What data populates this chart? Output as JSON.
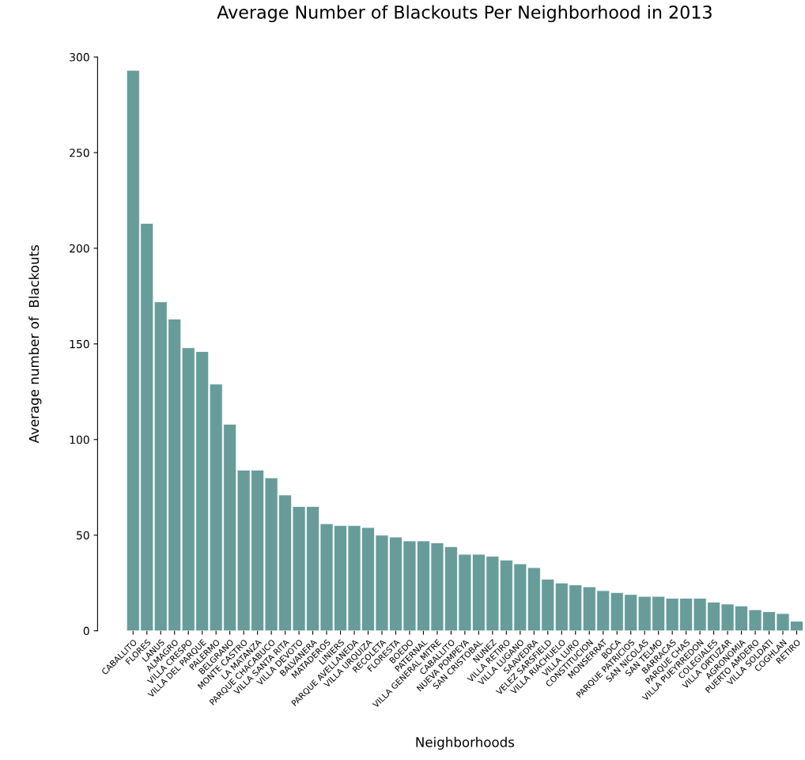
{
  "chart_data": {
    "type": "bar",
    "title": "Average Number of Blackouts Per Neighborhood in 2013",
    "xlabel": "Neighborhoods",
    "ylabel": "Average number of  Blackouts",
    "categories": [
      "CABALLITO",
      "FLORES",
      "LANUS",
      "ALMAGRO",
      "VILLA CRESPO",
      "VILLA DEL PARQUE",
      "PALERMO",
      "BELGRANO",
      "MONTE CASTRO",
      "LA MATANZA",
      "PARQUE CHACABUCO",
      "VILLA SANTA RITA",
      "VILLA DEVOTO",
      "BALVANERA",
      "MATADEROS",
      "LINIERS",
      "PARQUE AVELLANEDA",
      "VILLA URQUIZA",
      "RECOLETA",
      "FLORESTA",
      "BOEDO",
      "PATERNAL",
      "VILLA GENERAL MITRE",
      "CABALLITO",
      "NUEVA POMPEYA",
      "SAN CRISTOBAL",
      "NUNEZ",
      "VILLA RETIRO",
      "VILLA LUGANO",
      "SAAVEDRA",
      "VELEZ SARSFIELD",
      "VILLA RIACHUELO",
      "VILLA LURO",
      "CONSTITUCION",
      "MONSERRAT",
      "BOCA",
      "PARQUE PATRICIOS",
      "SAN NICOLAS",
      "SAN TELMO",
      "BARRACAS",
      "PARQUE CHAS",
      "VILLA PUEYRREDON",
      "COLEGIALES",
      "VILLA ORTUZAR",
      "AGRONOMIA",
      "PUERTO AMDERO",
      "VILLA SOLDATI",
      "COGHLAN",
      "RETIRO"
    ],
    "values": [
      293,
      213,
      172,
      163,
      148,
      146,
      129,
      108,
      84,
      84,
      80,
      71,
      65,
      65,
      56,
      55,
      55,
      54,
      50,
      49,
      47,
      47,
      46,
      44,
      40,
      40,
      39,
      37,
      35,
      33,
      27,
      25,
      24,
      23,
      21,
      20,
      19,
      18,
      18,
      17,
      17,
      17,
      15,
      14,
      13,
      11,
      10,
      9,
      5
    ],
    "color": "#679c9b",
    "ylim": [
      0,
      300
    ],
    "yticks": [
      0,
      50,
      100,
      150,
      200,
      250,
      300
    ],
    "grid": false,
    "legend": false
  }
}
